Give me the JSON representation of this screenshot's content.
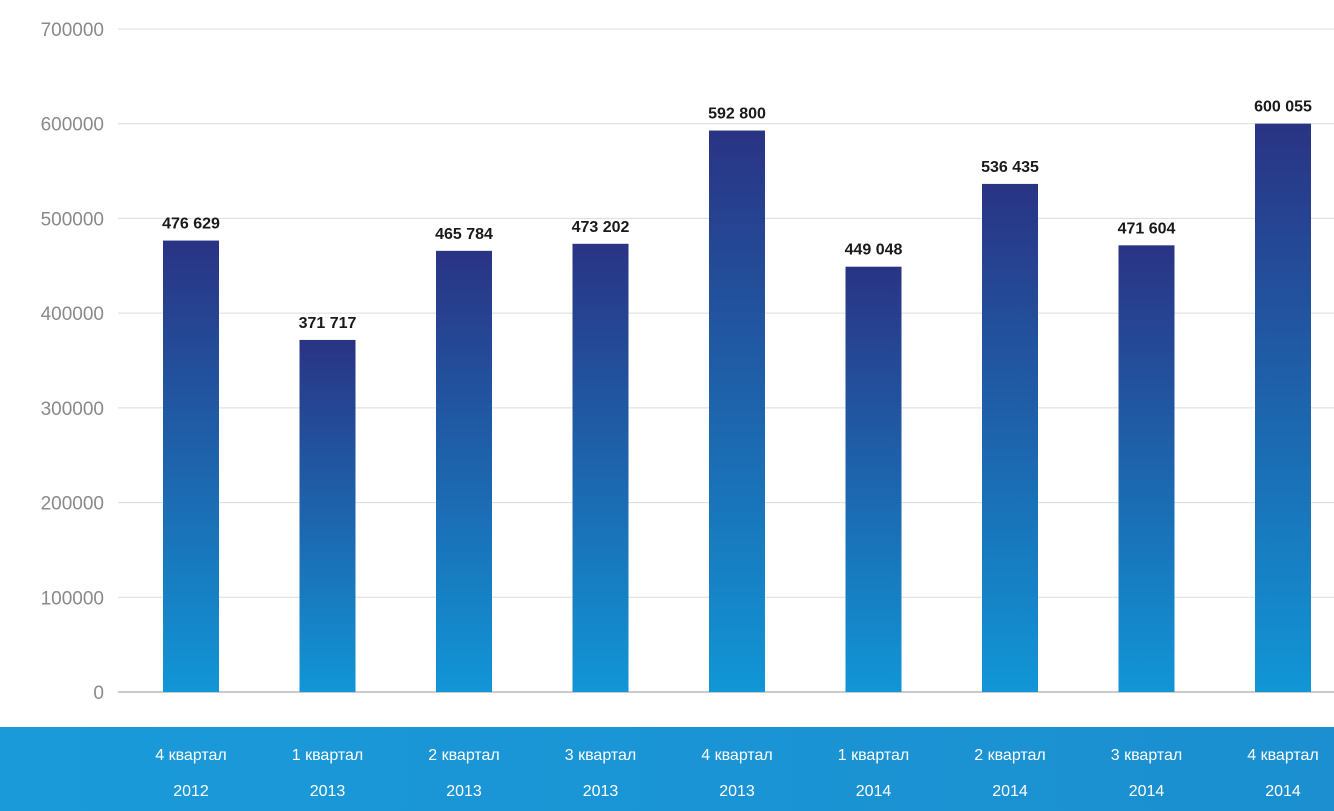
{
  "chart_data": {
    "type": "bar",
    "categories": [
      [
        "4 квартал",
        "2012"
      ],
      [
        "1 квартал",
        "2013"
      ],
      [
        "2 квартал",
        "2013"
      ],
      [
        "3 квартал",
        "2013"
      ],
      [
        "4 квартал",
        "2013"
      ],
      [
        "1 квартал",
        "2014"
      ],
      [
        "2 квартал",
        "2014"
      ],
      [
        "3 квартал",
        "2014"
      ],
      [
        "4 квартал",
        "2014"
      ]
    ],
    "values": [
      476629,
      371717,
      465784,
      473202,
      592800,
      449048,
      536435,
      471604,
      600055
    ],
    "data_labels": [
      "476 629",
      "371 717",
      "465 784",
      "473 202",
      "592 800",
      "449 048",
      "536 435",
      "471 604",
      "600 055"
    ],
    "yticks": [
      0,
      100000,
      200000,
      300000,
      400000,
      500000,
      600000,
      700000
    ],
    "ylim": [
      0,
      700000
    ],
    "grid": true,
    "title": "",
    "xlabel": "",
    "ylabel": "",
    "colors": {
      "bar_top": "#2a3384",
      "bar_bottom": "#1196d6",
      "band_left": "#1a9ad9",
      "band_right": "#1b8fd0",
      "grid": "#dcdcdc",
      "baseline": "#b8b8b8"
    }
  }
}
